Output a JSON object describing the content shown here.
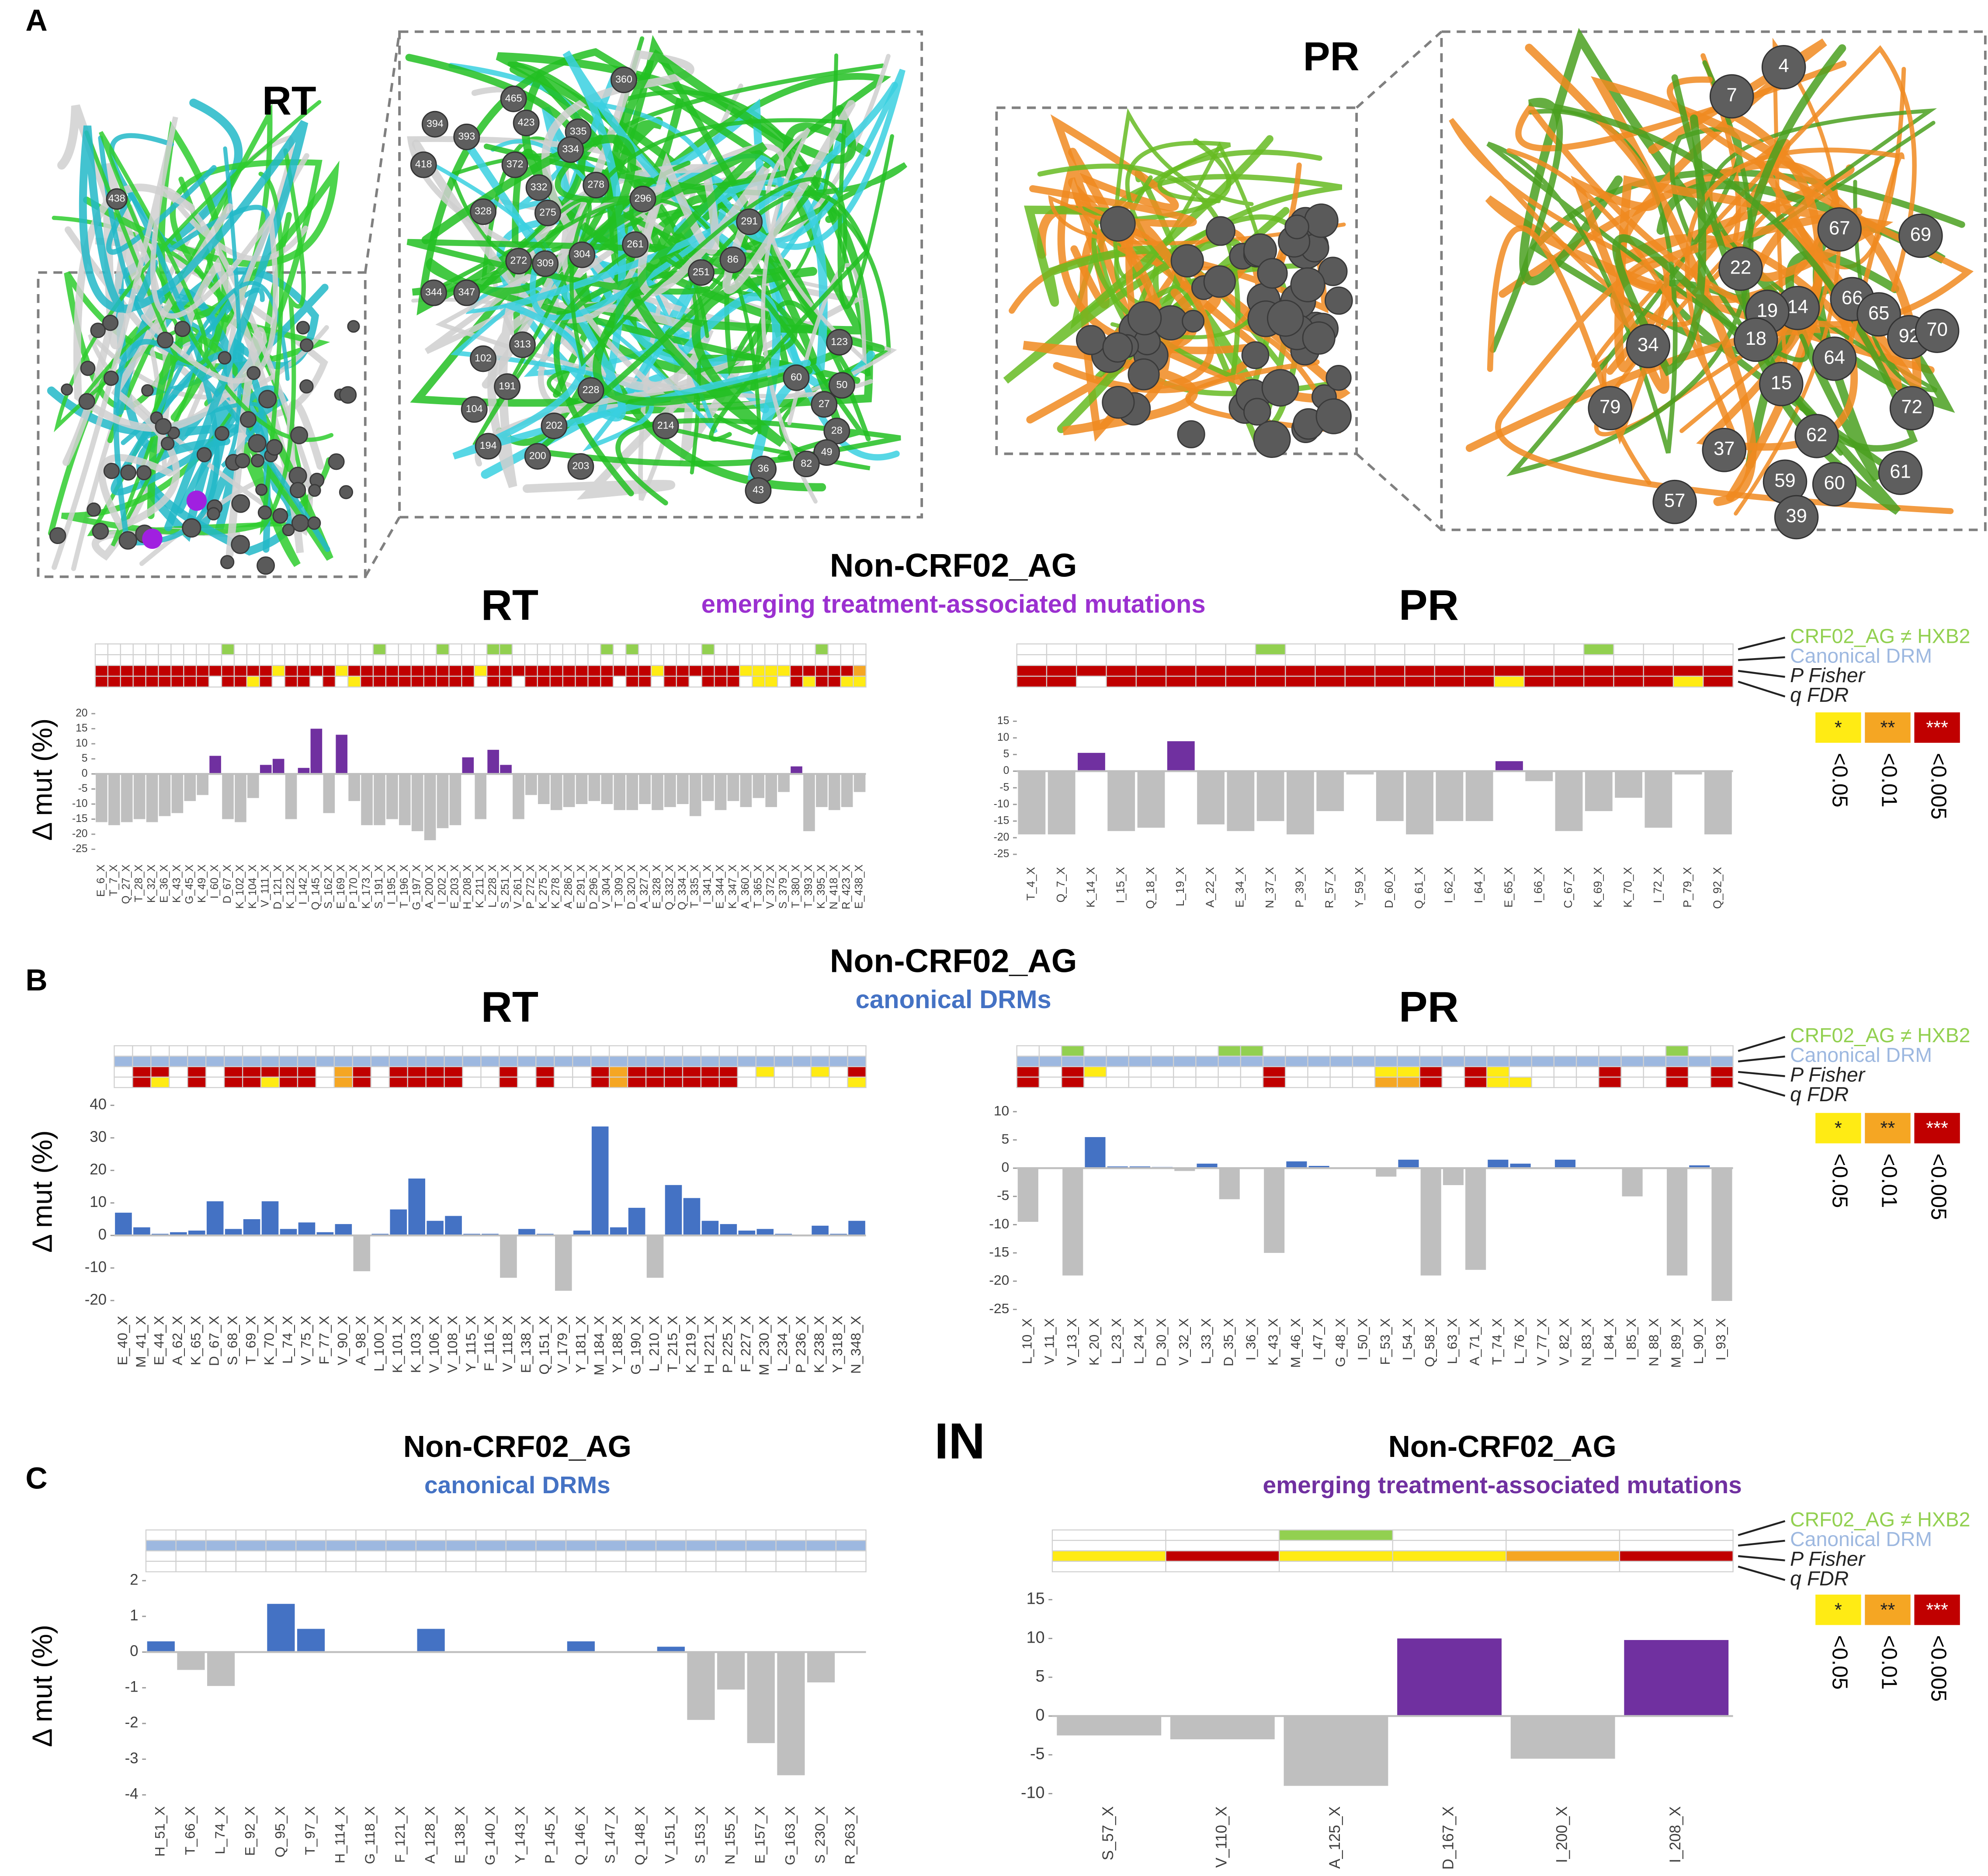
{
  "sections": [
    {
      "label": "A",
      "heading": "Non-CRF02_AG",
      "subheading": "emerging treatment-associated mutations"
    },
    {
      "label": "B",
      "heading": "Non-CRF02_AG",
      "subheading": "canonical DRMs"
    },
    {
      "label": "C"
    }
  ],
  "y_label": "Δ mut (%)",
  "strip_rows": [
    "CRF02_AG ≠ HXB2",
    "Canonical DRM",
    "P Fisher",
    "q FDR"
  ],
  "legend": {
    "symbols": [
      "*",
      "**",
      "***"
    ],
    "labels": [
      "<0.05",
      "<0.01",
      "<0.005"
    ]
  },
  "structure": {
    "rt": "RT",
    "pr": "PR",
    "rt_left": [
      "438"
    ],
    "rt_zoom": [
      "360",
      "465",
      "394",
      "393",
      "423",
      "335",
      "334",
      "418",
      "372",
      "332",
      "278",
      "296",
      "328",
      "275",
      "261",
      "291",
      "344",
      "347",
      "272",
      "309",
      "304",
      "251",
      "86",
      "313",
      "102",
      "191",
      "228",
      "60",
      "104",
      "202",
      "214",
      "194",
      "200",
      "203",
      "36",
      "43",
      "27",
      "28",
      "49",
      "82",
      "50",
      "123"
    ],
    "pr_zoom": [
      "4",
      "7",
      "67",
      "69",
      "22",
      "66",
      "65",
      "14",
      "19",
      "18",
      "34",
      "92",
      "70",
      "64",
      "15",
      "79",
      "72",
      "62",
      "37",
      "59",
      "60",
      "61",
      "57",
      "39"
    ]
  },
  "chart_data": [
    {
      "type": "bar",
      "protein": "RT",
      "pos_color": "#7030a0",
      "neg_color": "#bfbfbf",
      "categories": [
        "E_6_X",
        "T_7_X",
        "Q_27_X",
        "T_28_X",
        "K_32_X",
        "E_36_X",
        "K_43_X",
        "G_45_X",
        "K_49_X",
        "I_60_X",
        "D_67_X",
        "K_102_X",
        "K_104_X",
        "V_111_X",
        "D_121_X",
        "K_122_X",
        "I_142_X",
        "Q_145_X",
        "S_162_X",
        "E_169_X",
        "P_170_X",
        "K_173_X",
        "S_191_X",
        "I_195_X",
        "T_196_X",
        "G_197_X",
        "A_200_X",
        "I_202_X",
        "E_203_X",
        "H_208_X",
        "K_211_X",
        "L_228_X",
        "S_251_X",
        "V_261_X",
        "P_272_X",
        "K_275_X",
        "K_278_X",
        "A_286_X",
        "E_291_X",
        "D_296_X",
        "V_304_X",
        "T_309_X",
        "D_320_X",
        "A_327_X",
        "E_328_X",
        "Q_332_X",
        "Q_334_X",
        "T_335_X",
        "I_341_X",
        "E_344_X",
        "K_347_X",
        "A_360_X",
        "T_365_X",
        "V_372_X",
        "S_379_X",
        "T_380_X",
        "T_393_X",
        "K_395_X",
        "N_418_X",
        "R_423_X",
        "E_438_X"
      ],
      "values": [
        -16,
        -17,
        -16,
        -15,
        -16,
        -14,
        -13,
        -9,
        -7,
        6,
        -15,
        -16,
        -8,
        3,
        5,
        -15,
        2,
        15,
        -13,
        13,
        -9,
        -17,
        -17,
        -15,
        -17,
        -19,
        -22,
        -18,
        -17,
        5.5,
        -15,
        8,
        3,
        -15,
        -7,
        -10,
        -12,
        -11,
        -10,
        -9,
        -10,
        -12,
        -12,
        -10,
        -12,
        -11,
        -10,
        -14,
        -9,
        -12,
        -9,
        -11,
        -8,
        -11,
        -6,
        2.5,
        -19,
        -11,
        -12,
        -11,
        -6
      ],
      "ylim": [
        -25,
        20
      ],
      "yticks": [
        20,
        15,
        10,
        5,
        0,
        -5,
        -10,
        -15,
        -20,
        -25
      ],
      "strip": {
        "crf": [
          0,
          0,
          0,
          0,
          0,
          0,
          0,
          0,
          0,
          0,
          1,
          0,
          0,
          0,
          0,
          0,
          0,
          0,
          0,
          0,
          0,
          0,
          1,
          0,
          0,
          0,
          0,
          1,
          0,
          0,
          0,
          1,
          1,
          0,
          0,
          0,
          0,
          0,
          0,
          0,
          1,
          0,
          1,
          0,
          0,
          0,
          0,
          0,
          1,
          0,
          0,
          0,
          0,
          0,
          0,
          0,
          0,
          1,
          0,
          0,
          0
        ],
        "p": [
          3,
          3,
          3,
          3,
          3,
          3,
          3,
          3,
          3,
          3,
          3,
          3,
          3,
          3,
          1,
          3,
          3,
          3,
          3,
          1,
          3,
          3,
          3,
          3,
          3,
          3,
          3,
          3,
          3,
          3,
          1,
          3,
          3,
          3,
          3,
          3,
          3,
          3,
          3,
          3,
          3,
          3,
          3,
          3,
          1,
          3,
          3,
          3,
          3,
          3,
          3,
          1,
          1,
          1,
          1,
          3,
          3,
          3,
          3,
          3,
          2
        ],
        "q": [
          3,
          3,
          3,
          3,
          3,
          3,
          3,
          3,
          3,
          0,
          3,
          3,
          1,
          3,
          0,
          3,
          3,
          0,
          3,
          0,
          1,
          3,
          3,
          3,
          3,
          3,
          3,
          3,
          3,
          3,
          0,
          3,
          3,
          0,
          3,
          3,
          3,
          3,
          3,
          3,
          3,
          0,
          3,
          3,
          0,
          3,
          3,
          0,
          3,
          3,
          3,
          0,
          1,
          1,
          0,
          3,
          1,
          3,
          3,
          1,
          1
        ]
      }
    },
    {
      "type": "bar",
      "protein": "PR",
      "pos_color": "#7030a0",
      "neg_color": "#bfbfbf",
      "categories": [
        "T_4_X",
        "Q_7_X",
        "K_14_X",
        "I_15_X",
        "Q_18_X",
        "L_19_X",
        "A_22_X",
        "E_34_X",
        "N_37_X",
        "P_39_X",
        "R_57_X",
        "Y_59_X",
        "D_60_X",
        "Q_61_X",
        "I_62_X",
        "I_64_X",
        "E_65_X",
        "I_66_X",
        "C_67_X",
        "K_69_X",
        "K_70_X",
        "I_72_X",
        "P_79_X",
        "Q_92_X"
      ],
      "values": [
        -19,
        -19,
        5.5,
        -18,
        -17,
        9,
        -16,
        -18,
        -15,
        -19,
        -12,
        -1,
        -15,
        -19,
        -15,
        -15,
        3,
        -3,
        -18,
        -12,
        -8,
        -17,
        -1,
        -19
      ],
      "ylim": [
        -25,
        15
      ],
      "yticks": [
        15,
        10,
        5,
        0,
        -5,
        -10,
        -15,
        -20,
        -25
      ],
      "strip": {
        "crf": [
          0,
          0,
          0,
          0,
          0,
          0,
          0,
          0,
          1,
          0,
          0,
          0,
          0,
          0,
          0,
          0,
          0,
          0,
          0,
          1,
          0,
          0,
          0,
          0
        ],
        "p": [
          3,
          3,
          3,
          3,
          3,
          3,
          3,
          3,
          3,
          3,
          3,
          3,
          3,
          3,
          3,
          3,
          3,
          3,
          3,
          3,
          3,
          3,
          3,
          3
        ],
        "q": [
          3,
          3,
          0,
          3,
          3,
          3,
          3,
          3,
          3,
          3,
          3,
          3,
          3,
          3,
          3,
          3,
          1,
          3,
          3,
          3,
          3,
          3,
          1,
          3
        ]
      }
    },
    {
      "type": "bar",
      "protein": "RT",
      "pos_color": "#4472c4",
      "neg_color": "#bfbfbf",
      "categories": [
        "E_40_X",
        "M_41_X",
        "E_44_X",
        "A_62_X",
        "K_65_X",
        "D_67_X",
        "S_68_X",
        "T_69_X",
        "K_70_X",
        "L_74_X",
        "V_75_X",
        "F_77_X",
        "V_90_X",
        "A_98_X",
        "L_100_X",
        "K_101_X",
        "K_103_X",
        "V_106_X",
        "V_108_X",
        "Y_115_X",
        "F_116_X",
        "V_118_X",
        "E_138_X",
        "Q_151_X",
        "V_179_X",
        "Y_181_X",
        "M_184_X",
        "Y_188_X",
        "G_190_X",
        "L_210_X",
        "T_215_X",
        "K_219_X",
        "H_221_X",
        "P_225_X",
        "F_227_X",
        "M_230_X",
        "L_234_X",
        "P_236_X",
        "K_238_X",
        "Y_318_X",
        "N_348_X"
      ],
      "values": [
        7,
        2.5,
        0.5,
        1,
        1.5,
        10.5,
        2,
        5,
        10.5,
        2,
        4,
        1,
        3.5,
        -11,
        0.5,
        8,
        17.5,
        4.5,
        6,
        0.5,
        0.5,
        -13,
        2,
        0.5,
        -17,
        1.5,
        33.5,
        2.5,
        8.5,
        -13,
        15.5,
        11.5,
        4.5,
        3.5,
        1.5,
        2,
        0.5,
        0,
        3,
        0.5,
        4.5
      ],
      "ylim": [
        -20,
        40
      ],
      "yticks": [
        40,
        30,
        20,
        10,
        0,
        -10,
        -20
      ],
      "strip": {
        "drm": [
          1,
          1,
          1,
          1,
          1,
          1,
          1,
          1,
          1,
          1,
          1,
          1,
          1,
          1,
          1,
          1,
          1,
          1,
          1,
          1,
          1,
          1,
          1,
          1,
          1,
          1,
          1,
          1,
          1,
          1,
          1,
          1,
          1,
          1,
          1,
          1,
          1,
          1,
          1,
          1,
          1
        ],
        "p": [
          0,
          3,
          3,
          0,
          3,
          0,
          3,
          3,
          3,
          3,
          3,
          0,
          2,
          3,
          0,
          3,
          3,
          3,
          3,
          0,
          0,
          3,
          0,
          3,
          0,
          0,
          3,
          2,
          3,
          3,
          3,
          3,
          3,
          3,
          0,
          1,
          0,
          0,
          1,
          0,
          3
        ],
        "q": [
          0,
          3,
          1,
          0,
          3,
          0,
          3,
          3,
          1,
          3,
          3,
          0,
          2,
          3,
          0,
          3,
          3,
          3,
          3,
          0,
          0,
          3,
          0,
          3,
          0,
          0,
          3,
          2,
          3,
          3,
          3,
          3,
          3,
          3,
          0,
          0,
          0,
          0,
          0,
          0,
          1
        ]
      }
    },
    {
      "type": "bar",
      "protein": "PR",
      "pos_color": "#4472c4",
      "neg_color": "#bfbfbf",
      "categories": [
        "L_10_X",
        "V_11_X",
        "V_13_X",
        "K_20_X",
        "L_23_X",
        "L_24_X",
        "D_30_X",
        "V_32_X",
        "L_33_X",
        "D_35_X",
        "I_36_X",
        "K_43_X",
        "M_46_X",
        "I_47_X",
        "G_48_X",
        "I_50_X",
        "F_53_X",
        "I_54_X",
        "Q_58_X",
        "L_63_X",
        "A_71_X",
        "T_74_X",
        "L_76_X",
        "V_77_X",
        "V_82_X",
        "N_83_X",
        "I_84_X",
        "I_85_X",
        "N_88_X",
        "M_89_X",
        "L_90_X",
        "I_93_X"
      ],
      "values": [
        -9.5,
        0,
        -19,
        5.5,
        0.3,
        0.3,
        0.2,
        -0.5,
        0.8,
        -5.5,
        0,
        -15,
        1.2,
        0.4,
        0,
        0,
        -1.5,
        1.5,
        -19,
        -3,
        -18,
        1.5,
        0.8,
        0,
        1.5,
        0,
        0,
        -5,
        0,
        -19,
        0.5,
        -23.5
      ],
      "ylim": [
        -25,
        10
      ],
      "yticks": [
        10,
        5,
        0,
        -5,
        -10,
        -15,
        -20,
        -25
      ],
      "strip": {
        "crf": [
          0,
          0,
          1,
          0,
          0,
          0,
          0,
          0,
          0,
          1,
          1,
          0,
          0,
          0,
          0,
          0,
          0,
          0,
          0,
          0,
          0,
          0,
          0,
          0,
          0,
          0,
          0,
          0,
          0,
          1,
          0,
          0
        ],
        "drm": [
          1,
          1,
          1,
          1,
          1,
          1,
          1,
          1,
          1,
          1,
          1,
          1,
          1,
          1,
          1,
          1,
          1,
          1,
          1,
          1,
          1,
          1,
          1,
          1,
          1,
          1,
          1,
          1,
          1,
          1,
          1,
          1
        ],
        "p": [
          3,
          0,
          3,
          1,
          0,
          0,
          0,
          0,
          0,
          0,
          0,
          3,
          0,
          0,
          0,
          0,
          1,
          1,
          3,
          0,
          3,
          1,
          0,
          0,
          0,
          0,
          3,
          0,
          0,
          3,
          0,
          3
        ],
        "q": [
          3,
          0,
          3,
          0,
          0,
          0,
          0,
          0,
          0,
          0,
          0,
          3,
          0,
          0,
          0,
          0,
          2,
          2,
          3,
          0,
          3,
          1,
          1,
          0,
          0,
          0,
          3,
          0,
          0,
          3,
          0,
          3
        ]
      }
    },
    {
      "type": "bar",
      "title": "Non-CRF02_AG",
      "subtitle": "canonical DRMs",
      "pos_color": "#4472c4",
      "neg_color": "#bfbfbf",
      "categories": [
        "H_51_X",
        "T_66_X",
        "L_74_X",
        "E_92_X",
        "Q_95_X",
        "T_97_X",
        "H_114_X",
        "G_118_X",
        "F_121_X",
        "A_128_X",
        "E_138_X",
        "G_140_X",
        "Y_143_X",
        "P_145_X",
        "Q_146_X",
        "S_147_X",
        "Q_148_X",
        "V_151_X",
        "S_153_X",
        "N_155_X",
        "E_157_X",
        "G_163_X",
        "S_230_X",
        "R_263_X"
      ],
      "values": [
        0.3,
        -0.5,
        -0.95,
        0,
        1.35,
        0.65,
        0,
        0,
        0,
        0.65,
        0,
        0,
        0,
        0,
        0.3,
        0,
        0,
        0.15,
        -1.9,
        -1.05,
        -2.55,
        -3.45,
        -0.85,
        0
      ],
      "ylim": [
        -4,
        2
      ],
      "yticks": [
        2,
        1,
        0,
        -1,
        -2,
        -3,
        -4
      ],
      "strip": {
        "drm": [
          1,
          1,
          1,
          1,
          1,
          1,
          1,
          1,
          1,
          1,
          1,
          1,
          1,
          1,
          1,
          1,
          1,
          1,
          1,
          1,
          1,
          1,
          1,
          1
        ]
      }
    },
    {
      "type": "bar",
      "protein": "IN",
      "title": "Non-CRF02_AG",
      "subtitle": "emerging treatment-associated mutations",
      "pos_color": "#7030a0",
      "neg_color": "#bfbfbf",
      "categories": [
        "S_57_X",
        "V_110_X",
        "A_125_X",
        "D_167_X",
        "I_200_X",
        "I_208_X"
      ],
      "values": [
        -2.5,
        -3,
        -9,
        10,
        -5.5,
        9.8
      ],
      "ylim": [
        -10,
        15
      ],
      "yticks": [
        15,
        10,
        5,
        0,
        -5,
        -10
      ],
      "strip": {
        "crf": [
          0,
          0,
          1,
          0,
          0,
          0
        ],
        "p": [
          1,
          3,
          1,
          1,
          2,
          3
        ]
      }
    }
  ]
}
